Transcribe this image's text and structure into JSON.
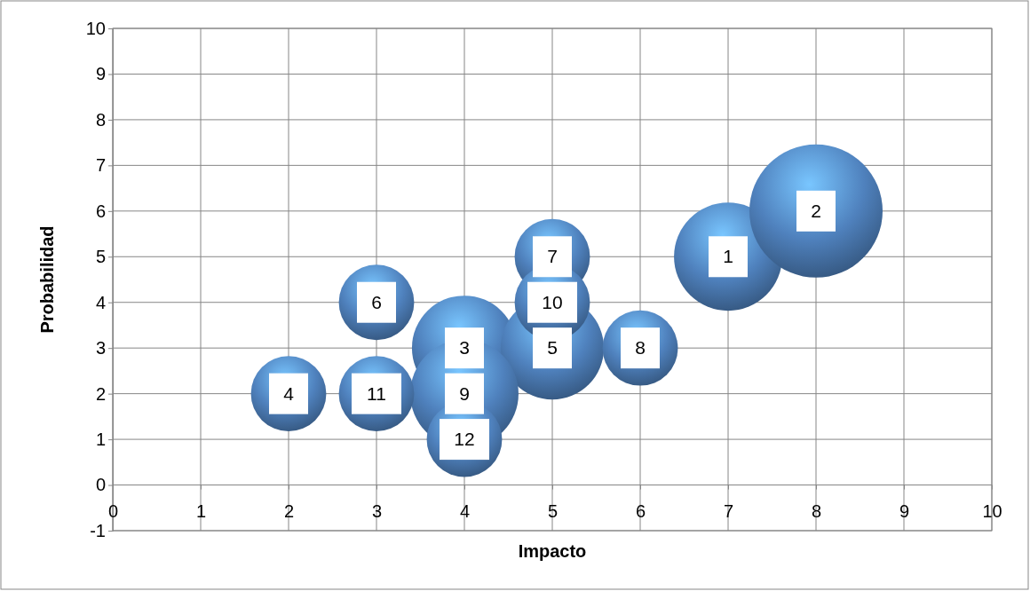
{
  "chart_data": {
    "type": "bubble",
    "xlabel": "Impacto",
    "ylabel": "Probabilidad",
    "xlim": [
      0,
      10
    ],
    "ylim": [
      -1,
      10
    ],
    "xticks": [
      0,
      1,
      2,
      3,
      4,
      5,
      6,
      7,
      8,
      9,
      10
    ],
    "yticks": [
      -1,
      0,
      1,
      2,
      3,
      4,
      5,
      6,
      7,
      8,
      9,
      10
    ],
    "grid": true,
    "series": [
      {
        "color": "#4f81bd",
        "x": [
          7,
          8,
          4,
          2,
          5,
          3,
          5,
          6,
          4,
          5,
          3,
          4
        ],
        "values": [
          5,
          6,
          3,
          2,
          3,
          4,
          5,
          3,
          2,
          4,
          2,
          1
        ],
        "sizes": [
          0.66,
          1,
          0.62,
          0.32,
          0.6,
          0.32,
          0.32,
          0.32,
          0.66,
          0.32,
          0.32,
          0.32
        ]
      }
    ],
    "annotations": [
      {
        "text": "1",
        "x": 7,
        "y": 5
      },
      {
        "text": "2",
        "x": 8,
        "y": 6
      },
      {
        "text": "3",
        "x": 4,
        "y": 3
      },
      {
        "text": "4",
        "x": 2,
        "y": 2
      },
      {
        "text": "5",
        "x": 5,
        "y": 3
      },
      {
        "text": "6",
        "x": 3,
        "y": 4
      },
      {
        "text": "7",
        "x": 5,
        "y": 5
      },
      {
        "text": "8",
        "x": 6,
        "y": 3
      },
      {
        "text": "9",
        "x": 4,
        "y": 2
      },
      {
        "text": "10",
        "x": 5,
        "y": 4
      },
      {
        "text": "11",
        "x": 3,
        "y": 2
      },
      {
        "text": "12",
        "x": 4,
        "y": 1
      }
    ]
  }
}
